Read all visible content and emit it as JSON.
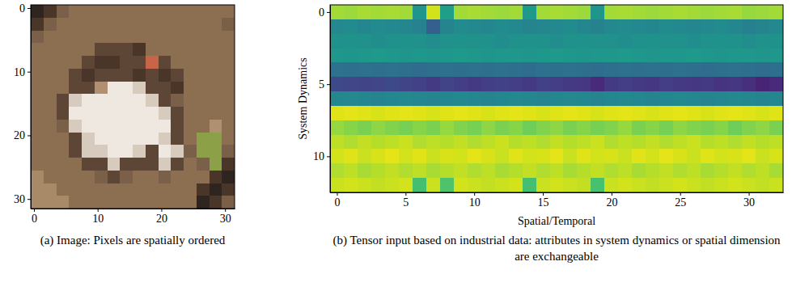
{
  "chart_data": [
    {
      "type": "image",
      "caption": "(a) Image: Pixels are spatially ordered",
      "xlim": [
        -0.5,
        31.5
      ],
      "ylim": [
        31.5,
        -0.5
      ],
      "xticks": [
        0,
        10,
        20,
        30
      ],
      "yticks": [
        0,
        10,
        20,
        30
      ],
      "pixels": [
        [
          "#2e2420",
          "#4a3628",
          "#7a6048",
          "#8c6e50",
          "#8c6e50",
          "#8c6e50",
          "#8c6e50",
          "#8c6e50",
          "#8c6e50",
          "#8c6e50",
          "#8c6e50",
          "#8c6e50",
          "#8c6e50",
          "#8c6e50",
          "#8c6e50",
          "#8c6e50"
        ],
        [
          "#4a3628",
          "#7a6048",
          "#8c6e50",
          "#8c6e50",
          "#8c6e50",
          "#8c6e50",
          "#8c6e50",
          "#8c6e50",
          "#8c6e50",
          "#8c6e50",
          "#8c6e50",
          "#8c6e50",
          "#8c6e50",
          "#8c6e50",
          "#8c6e50",
          "#7a6048"
        ],
        [
          "#7a6048",
          "#8c6e50",
          "#8c6e50",
          "#8c6e50",
          "#8c6e50",
          "#8c6e50",
          "#8c6e50",
          "#8c6e50",
          "#8c6e50",
          "#8c6e50",
          "#8c6e50",
          "#8c6e50",
          "#8c6e50",
          "#8c6e50",
          "#8c6e50",
          "#8c6e50"
        ],
        [
          "#8c6e50",
          "#8c6e50",
          "#8c6e50",
          "#8c6e50",
          "#8c6e50",
          "#5e4636",
          "#5e4636",
          "#5e4636",
          "#4a3628",
          "#8c6e50",
          "#8c6e50",
          "#8c6e50",
          "#8c6e50",
          "#8c6e50",
          "#8c6e50",
          "#8c6e50"
        ],
        [
          "#8c6e50",
          "#8c6e50",
          "#8c6e50",
          "#8c6e50",
          "#5e4636",
          "#4a3628",
          "#4a3628",
          "#5e4636",
          "#5e4636",
          "#c8644a",
          "#5e4636",
          "#8c6e50",
          "#8c6e50",
          "#8c6e50",
          "#8c6e50",
          "#8c6e50"
        ],
        [
          "#8c6e50",
          "#8c6e50",
          "#8c6e50",
          "#5e4636",
          "#4a3628",
          "#5e4636",
          "#5e4636",
          "#5e4636",
          "#4a3628",
          "#5e4636",
          "#4a3628",
          "#5e4636",
          "#8c6e50",
          "#8c6e50",
          "#8c6e50",
          "#8c6e50"
        ],
        [
          "#8c6e50",
          "#8c6e50",
          "#8c6e50",
          "#5e4636",
          "#5e4636",
          "#b09070",
          "#eee8e0",
          "#eee8e0",
          "#d6cbbd",
          "#5e4636",
          "#5e4636",
          "#4a3628",
          "#8c6e50",
          "#8c6e50",
          "#8c6e50",
          "#8c6e50"
        ],
        [
          "#8c6e50",
          "#8c6e50",
          "#5e4636",
          "#d6cbbd",
          "#eee8e0",
          "#eee8e0",
          "#eee8e0",
          "#eee8e0",
          "#eee8e0",
          "#d6cbbd",
          "#5e4636",
          "#7a6048",
          "#8c6e50",
          "#8c6e50",
          "#8c6e50",
          "#8c6e50"
        ],
        [
          "#8c6e50",
          "#8c6e50",
          "#5e4636",
          "#eee8e0",
          "#eee8e0",
          "#eee8e0",
          "#eee8e0",
          "#eee8e0",
          "#eee8e0",
          "#eee8e0",
          "#d6cbbd",
          "#5e4636",
          "#8c6e50",
          "#8c6e50",
          "#8c6e50",
          "#8c6e50"
        ],
        [
          "#8c6e50",
          "#8c6e50",
          "#7a6048",
          "#d6cbbd",
          "#eee8e0",
          "#eee8e0",
          "#eee8e0",
          "#eee8e0",
          "#eee8e0",
          "#eee8e0",
          "#eee8e0",
          "#5e4636",
          "#8c6e50",
          "#8c6e50",
          "#b09070",
          "#8c6e50"
        ],
        [
          "#8c6e50",
          "#8c6e50",
          "#8c6e50",
          "#5e4636",
          "#d6cbbd",
          "#eee8e0",
          "#eee8e0",
          "#eee8e0",
          "#eee8e0",
          "#eee8e0",
          "#d6cbbd",
          "#5e4636",
          "#8c6e50",
          "#8ca048",
          "#8ca048",
          "#8c6e50"
        ],
        [
          "#8c6e50",
          "#8c6e50",
          "#8c6e50",
          "#5e4636",
          "#d6cbbd",
          "#d6cbbd",
          "#eee8e0",
          "#eee8e0",
          "#d6cbbd",
          "#5e4636",
          "#eee8e0",
          "#d6cbbd",
          "#7a6048",
          "#8ca048",
          "#8ca048",
          "#7a6048"
        ],
        [
          "#8c6e50",
          "#8c6e50",
          "#8c6e50",
          "#8c6e50",
          "#5e4636",
          "#5e4636",
          "#d6cbbd",
          "#5e4636",
          "#5e4636",
          "#5e4636",
          "#d6cbbd",
          "#5e4636",
          "#8c6e50",
          "#7a6048",
          "#8ca048",
          "#4a3628"
        ],
        [
          "#a88a68",
          "#8c6e50",
          "#8c6e50",
          "#8c6e50",
          "#8c6e50",
          "#7a6048",
          "#5e4636",
          "#7a6048",
          "#8c6e50",
          "#8c6e50",
          "#7a6048",
          "#8c6e50",
          "#8c6e50",
          "#8c6e50",
          "#4a3628",
          "#2e2420"
        ],
        [
          "#a88a68",
          "#a88a68",
          "#8c6e50",
          "#8c6e50",
          "#8c6e50",
          "#8c6e50",
          "#8c6e50",
          "#8c6e50",
          "#8c6e50",
          "#8c6e50",
          "#8c6e50",
          "#8c6e50",
          "#8c6e50",
          "#4a3628",
          "#2e2420",
          "#4a3628"
        ],
        [
          "#a88a68",
          "#a88a68",
          "#a88a68",
          "#8c6e50",
          "#8c6e50",
          "#8c6e50",
          "#8c6e50",
          "#8c6e50",
          "#8c6e50",
          "#8c6e50",
          "#8c6e50",
          "#8c6e50",
          "#8c6e50",
          "#2e2420",
          "#4a3628",
          "#7a6048"
        ]
      ]
    },
    {
      "type": "heatmap",
      "caption": "(b) Tensor input based on industrial data: attributes in system dynamics or spatial dimension are exchangeable",
      "x_label": "Spatial/Temporal",
      "y_label": "System Dynamics",
      "xlim": [
        -0.5,
        32.5
      ],
      "ylim": [
        12.5,
        -0.5
      ],
      "xticks": [
        0,
        5,
        10,
        15,
        20,
        25,
        30
      ],
      "yticks": [
        0,
        5,
        10
      ],
      "color": "viridis",
      "zlim": [
        0,
        1
      ],
      "cells": [
        [
          0.86,
          0.85,
          0.87,
          0.86,
          0.87,
          0.86,
          0.52,
          0.93,
          0.56,
          0.86,
          0.87,
          0.86,
          0.85,
          0.86,
          0.54,
          0.86,
          0.87,
          0.86,
          0.85,
          0.52,
          0.86,
          0.87,
          0.86,
          0.85,
          0.86,
          0.87,
          0.86,
          0.85,
          0.86,
          0.87,
          0.84,
          0.85,
          0.86
        ],
        [
          0.47,
          0.48,
          0.46,
          0.48,
          0.47,
          0.46,
          0.44,
          0.3,
          0.45,
          0.48,
          0.47,
          0.46,
          0.48,
          0.47,
          0.45,
          0.46,
          0.47,
          0.48,
          0.46,
          0.44,
          0.47,
          0.48,
          0.47,
          0.46,
          0.48,
          0.47,
          0.46,
          0.47,
          0.48,
          0.46,
          0.43,
          0.45,
          0.47
        ],
        [
          0.5,
          0.51,
          0.5,
          0.49,
          0.5,
          0.51,
          0.5,
          0.49,
          0.5,
          0.51,
          0.5,
          0.5,
          0.49,
          0.5,
          0.51,
          0.5,
          0.49,
          0.5,
          0.51,
          0.5,
          0.5,
          0.49,
          0.5,
          0.51,
          0.5,
          0.5,
          0.49,
          0.5,
          0.51,
          0.5,
          0.49,
          0.5,
          0.51
        ],
        [
          0.53,
          0.52,
          0.53,
          0.54,
          0.53,
          0.52,
          0.53,
          0.52,
          0.53,
          0.54,
          0.53,
          0.52,
          0.53,
          0.53,
          0.52,
          0.53,
          0.54,
          0.53,
          0.52,
          0.53,
          0.53,
          0.54,
          0.53,
          0.52,
          0.53,
          0.53,
          0.54,
          0.53,
          0.52,
          0.53,
          0.53,
          0.52,
          0.53
        ],
        [
          0.37,
          0.36,
          0.37,
          0.36,
          0.37,
          0.36,
          0.35,
          0.36,
          0.37,
          0.36,
          0.37,
          0.36,
          0.37,
          0.36,
          0.35,
          0.37,
          0.36,
          0.37,
          0.36,
          0.35,
          0.36,
          0.37,
          0.36,
          0.37,
          0.36,
          0.37,
          0.36,
          0.35,
          0.36,
          0.37,
          0.36,
          0.35,
          0.36
        ],
        [
          0.22,
          0.21,
          0.2,
          0.21,
          0.22,
          0.2,
          0.19,
          0.17,
          0.2,
          0.18,
          0.17,
          0.18,
          0.19,
          0.18,
          0.17,
          0.19,
          0.18,
          0.17,
          0.16,
          0.12,
          0.17,
          0.18,
          0.17,
          0.16,
          0.18,
          0.17,
          0.16,
          0.17,
          0.15,
          0.16,
          0.14,
          0.1,
          0.12
        ],
        [
          0.46,
          0.47,
          0.46,
          0.45,
          0.46,
          0.47,
          0.46,
          0.45,
          0.46,
          0.47,
          0.46,
          0.45,
          0.46,
          0.47,
          0.46,
          0.45,
          0.46,
          0.47,
          0.46,
          0.45,
          0.46,
          0.47,
          0.46,
          0.45,
          0.46,
          0.47,
          0.46,
          0.45,
          0.46,
          0.47,
          0.46,
          0.45,
          0.46
        ],
        [
          0.95,
          0.96,
          0.95,
          0.94,
          0.95,
          0.96,
          0.95,
          0.94,
          0.95,
          0.96,
          0.95,
          0.94,
          0.95,
          0.96,
          0.95,
          0.94,
          0.95,
          0.96,
          0.95,
          0.94,
          0.95,
          0.96,
          0.95,
          0.94,
          0.95,
          0.96,
          0.95,
          0.94,
          0.95,
          0.96,
          0.95,
          0.94,
          0.95
        ],
        [
          0.84,
          0.82,
          0.8,
          0.83,
          0.81,
          0.79,
          0.82,
          0.8,
          0.84,
          0.81,
          0.79,
          0.83,
          0.8,
          0.82,
          0.78,
          0.81,
          0.83,
          0.8,
          0.82,
          0.79,
          0.81,
          0.84,
          0.8,
          0.82,
          0.79,
          0.83,
          0.81,
          0.8,
          0.82,
          0.78,
          0.81,
          0.83,
          0.8
        ],
        [
          0.9,
          0.88,
          0.91,
          0.89,
          0.9,
          0.92,
          0.88,
          0.9,
          0.89,
          0.91,
          0.88,
          0.9,
          0.92,
          0.89,
          0.9,
          0.88,
          0.91,
          0.89,
          0.9,
          0.92,
          0.88,
          0.9,
          0.89,
          0.91,
          0.88,
          0.9,
          0.92,
          0.89,
          0.9,
          0.88,
          0.91,
          0.89,
          0.9
        ],
        [
          0.93,
          0.95,
          0.92,
          0.94,
          0.96,
          0.93,
          0.95,
          0.92,
          0.94,
          0.93,
          0.96,
          0.94,
          0.92,
          0.95,
          0.93,
          0.94,
          0.96,
          0.92,
          0.95,
          0.93,
          0.94,
          0.92,
          0.95,
          0.93,
          0.96,
          0.94,
          0.92,
          0.95,
          0.93,
          0.94,
          0.96,
          0.92,
          0.94
        ],
        [
          0.88,
          0.9,
          0.87,
          0.89,
          0.91,
          0.88,
          0.9,
          0.87,
          0.89,
          0.91,
          0.88,
          0.9,
          0.87,
          0.89,
          0.91,
          0.88,
          0.9,
          0.87,
          0.89,
          0.91,
          0.88,
          0.9,
          0.87,
          0.89,
          0.91,
          0.88,
          0.9,
          0.87,
          0.89,
          0.91,
          0.88,
          0.9,
          0.87
        ],
        [
          0.92,
          0.93,
          0.92,
          0.91,
          0.92,
          0.93,
          0.7,
          0.92,
          0.72,
          0.93,
          0.92,
          0.91,
          0.92,
          0.93,
          0.7,
          0.92,
          0.93,
          0.92,
          0.91,
          0.71,
          0.92,
          0.93,
          0.92,
          0.91,
          0.92,
          0.93,
          0.92,
          0.91,
          0.92,
          0.93,
          0.92,
          0.91,
          0.92
        ]
      ]
    }
  ]
}
